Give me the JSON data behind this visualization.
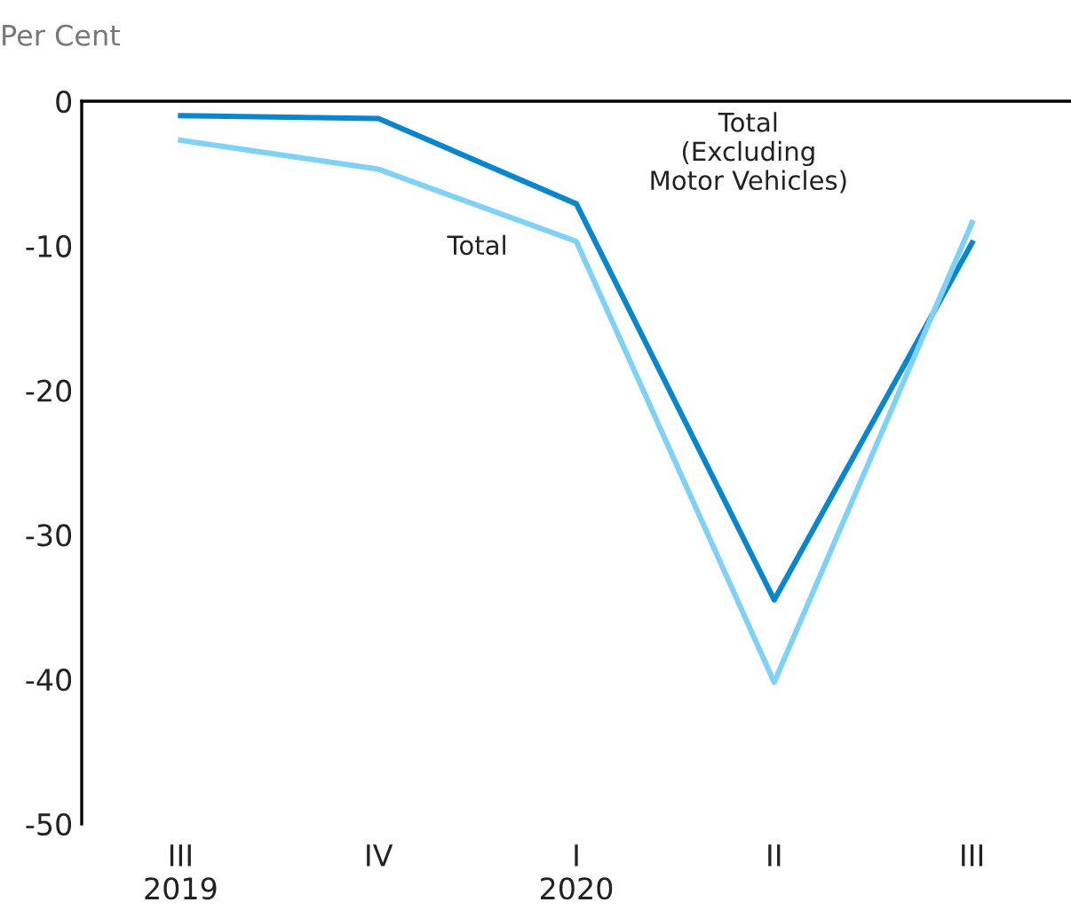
{
  "chart_data": {
    "type": "line",
    "ylabel": "Per Cent",
    "categories": [
      "III\n2019",
      "IV",
      "I\n2020",
      "II",
      "III"
    ],
    "series": [
      {
        "name": "Total\n(Excluding\nMotor Vehicles)",
        "color": "#0a86cc",
        "values": [
          -1.0,
          -1.2,
          -7.1,
          -34.5,
          -9.8
        ]
      },
      {
        "name": "Total",
        "color": "#7fd2f5",
        "values": [
          -2.7,
          -4.7,
          -9.7,
          -40.2,
          -8.4
        ]
      }
    ],
    "ylim": [
      -50,
      0
    ],
    "yticks": [
      -50,
      -40,
      -30,
      -20,
      -10,
      0
    ],
    "grid": false,
    "legend": false,
    "marker": "none",
    "line_style": "solid"
  }
}
